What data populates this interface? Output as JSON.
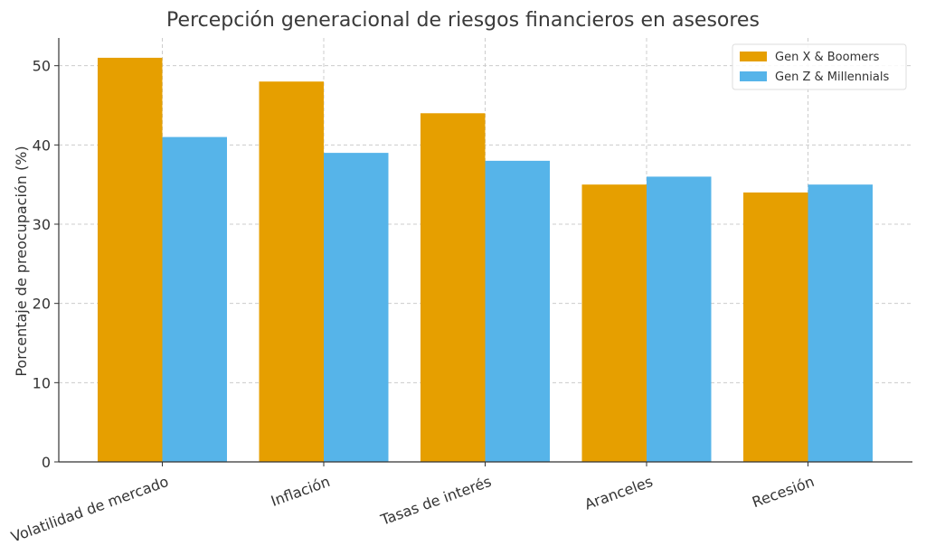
{
  "chart_data": {
    "type": "bar",
    "title": "Percepción generacional de riesgos financieros en asesores",
    "xlabel": "",
    "ylabel": "Porcentaje de preocupación (%)",
    "categories": [
      "Volatilidad de mercado",
      "Inflación",
      "Tasas de interés",
      "Aranceles",
      "Recesión"
    ],
    "series": [
      {
        "name": "Gen X & Boomers",
        "values": [
          51,
          48,
          44,
          35,
          34
        ],
        "color": "#E69F00"
      },
      {
        "name": "Gen Z & Millennials",
        "values": [
          41,
          39,
          38,
          36,
          35
        ],
        "color": "#56B4E9"
      }
    ],
    "ylim": [
      0,
      53.5
    ],
    "yticks": [
      0,
      10,
      20,
      30,
      40,
      50
    ],
    "grid": true,
    "legend_position": "top-right"
  }
}
